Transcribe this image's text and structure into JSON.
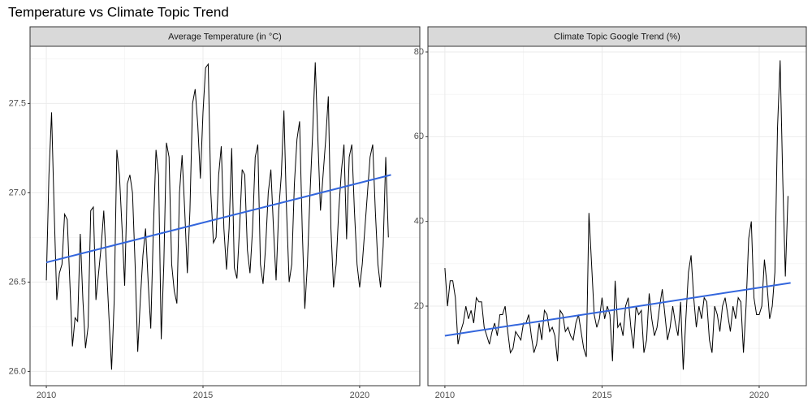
{
  "title": "Temperature vs Climate Topic Trend",
  "chart_data": [
    {
      "type": "line",
      "title": "Average Temperature (in °C)",
      "x": [
        2010,
        2010.083,
        2010.167,
        2010.25,
        2010.333,
        2010.417,
        2010.5,
        2010.583,
        2010.667,
        2010.75,
        2010.833,
        2010.917,
        2011,
        2011.083,
        2011.167,
        2011.25,
        2011.333,
        2011.417,
        2011.5,
        2011.583,
        2011.667,
        2011.75,
        2011.833,
        2011.917,
        2012,
        2012.083,
        2012.167,
        2012.25,
        2012.333,
        2012.417,
        2012.5,
        2012.583,
        2012.667,
        2012.75,
        2012.833,
        2012.917,
        2013,
        2013.083,
        2013.167,
        2013.25,
        2013.333,
        2013.417,
        2013.5,
        2013.583,
        2013.667,
        2013.75,
        2013.833,
        2013.917,
        2014,
        2014.083,
        2014.167,
        2014.25,
        2014.333,
        2014.417,
        2014.5,
        2014.583,
        2014.667,
        2014.75,
        2014.833,
        2014.917,
        2015,
        2015.083,
        2015.167,
        2015.25,
        2015.333,
        2015.417,
        2015.5,
        2015.583,
        2015.667,
        2015.75,
        2015.833,
        2015.917,
        2016,
        2016.083,
        2016.167,
        2016.25,
        2016.333,
        2016.417,
        2016.5,
        2016.583,
        2016.667,
        2016.75,
        2016.833,
        2016.917,
        2017,
        2017.083,
        2017.167,
        2017.25,
        2017.333,
        2017.417,
        2017.5,
        2017.583,
        2017.667,
        2017.75,
        2017.833,
        2017.917,
        2018,
        2018.083,
        2018.167,
        2018.25,
        2018.333,
        2018.417,
        2018.5,
        2018.583,
        2018.667,
        2018.75,
        2018.833,
        2018.917,
        2019,
        2019.083,
        2019.167,
        2019.25,
        2019.333,
        2019.417,
        2019.5,
        2019.583,
        2019.667,
        2019.75,
        2019.833,
        2019.917,
        2020,
        2020.083,
        2020.167,
        2020.25,
        2020.333,
        2020.417,
        2020.5,
        2020.583,
        2020.667,
        2020.75,
        2020.833,
        2020.917
      ],
      "values": [
        26.51,
        27.1,
        27.45,
        26.9,
        26.4,
        26.55,
        26.6,
        26.88,
        26.85,
        26.5,
        26.14,
        26.3,
        26.28,
        26.77,
        26.4,
        26.13,
        26.25,
        26.9,
        26.92,
        26.4,
        26.55,
        26.7,
        26.9,
        26.6,
        26.3,
        26.01,
        26.4,
        27.24,
        27.1,
        26.8,
        26.48,
        27.05,
        27.1,
        27.0,
        26.6,
        26.11,
        26.4,
        26.65,
        26.8,
        26.5,
        26.24,
        26.8,
        27.24,
        27.1,
        26.18,
        26.6,
        27.28,
        27.2,
        26.6,
        26.45,
        26.38,
        27.0,
        27.21,
        26.9,
        26.55,
        26.9,
        27.5,
        27.58,
        27.38,
        27.08,
        27.45,
        27.7,
        27.72,
        27.0,
        26.72,
        26.75,
        27.1,
        27.26,
        26.8,
        26.57,
        26.8,
        27.25,
        26.58,
        26.52,
        26.8,
        27.13,
        27.1,
        26.68,
        26.55,
        26.8,
        27.2,
        27.27,
        26.6,
        26.49,
        26.7,
        27.0,
        27.13,
        26.8,
        26.51,
        26.9,
        27.1,
        27.46,
        26.9,
        26.5,
        26.6,
        27.05,
        27.3,
        27.4,
        26.8,
        26.35,
        26.6,
        27.0,
        27.33,
        27.73,
        27.3,
        26.9,
        27.1,
        27.3,
        27.54,
        26.8,
        26.47,
        26.6,
        26.9,
        27.12,
        27.27,
        26.74,
        27.2,
        27.27,
        26.9,
        26.6,
        26.47,
        26.6,
        26.8,
        27.0,
        27.2,
        27.27,
        26.9,
        26.6,
        26.47,
        26.7,
        27.2,
        26.75
      ],
      "color": "#000000",
      "trend": {
        "x": [
          2010,
          2021
        ],
        "values": [
          26.61,
          27.1
        ],
        "color": "#3366dd"
      },
      "xlim": [
        2009.48,
        2021.92
      ],
      "ylim": [
        25.92,
        27.82
      ],
      "xticks": [
        2010,
        2015,
        2020
      ],
      "yticks": [
        {
          "value": 26,
          "label": "26.0"
        },
        26.5,
        {
          "value": 27,
          "label": "27.0"
        },
        27.5
      ],
      "grid": true
    },
    {
      "type": "line",
      "title": "Climate Topic Google Trend (%)",
      "x": [
        2010,
        2010.083,
        2010.167,
        2010.25,
        2010.333,
        2010.417,
        2010.5,
        2010.583,
        2010.667,
        2010.75,
        2010.833,
        2010.917,
        2011,
        2011.083,
        2011.167,
        2011.25,
        2011.333,
        2011.417,
        2011.5,
        2011.583,
        2011.667,
        2011.75,
        2011.833,
        2011.917,
        2012,
        2012.083,
        2012.167,
        2012.25,
        2012.333,
        2012.417,
        2012.5,
        2012.583,
        2012.667,
        2012.75,
        2012.833,
        2012.917,
        2013,
        2013.083,
        2013.167,
        2013.25,
        2013.333,
        2013.417,
        2013.5,
        2013.583,
        2013.667,
        2013.75,
        2013.833,
        2013.917,
        2014,
        2014.083,
        2014.167,
        2014.25,
        2014.333,
        2014.417,
        2014.5,
        2014.583,
        2014.667,
        2014.75,
        2014.833,
        2014.917,
        2015,
        2015.083,
        2015.167,
        2015.25,
        2015.333,
        2015.417,
        2015.5,
        2015.583,
        2015.667,
        2015.75,
        2015.833,
        2015.917,
        2016,
        2016.083,
        2016.167,
        2016.25,
        2016.333,
        2016.417,
        2016.5,
        2016.583,
        2016.667,
        2016.75,
        2016.833,
        2016.917,
        2017,
        2017.083,
        2017.167,
        2017.25,
        2017.333,
        2017.417,
        2017.5,
        2017.583,
        2017.667,
        2017.75,
        2017.833,
        2017.917,
        2018,
        2018.083,
        2018.167,
        2018.25,
        2018.333,
        2018.417,
        2018.5,
        2018.583,
        2018.667,
        2018.75,
        2018.833,
        2018.917,
        2019,
        2019.083,
        2019.167,
        2019.25,
        2019.333,
        2019.417,
        2019.5,
        2019.583,
        2019.667,
        2019.75,
        2019.833,
        2019.917,
        2020,
        2020.083,
        2020.167,
        2020.25,
        2020.333,
        2020.417,
        2020.5,
        2020.583,
        2020.667,
        2020.75,
        2020.833,
        2020.917
      ],
      "values": [
        29,
        20,
        26,
        26,
        22,
        11,
        14,
        16,
        20,
        17,
        19,
        16,
        22,
        21,
        21,
        15,
        13,
        11,
        14,
        16,
        13,
        18,
        18,
        20,
        14,
        9,
        10,
        14,
        13,
        12,
        16,
        16,
        18,
        13,
        9,
        11,
        16,
        12,
        19,
        18,
        14,
        15,
        13,
        7,
        19,
        18,
        14,
        15,
        13,
        12,
        16,
        18,
        14,
        10,
        8,
        42,
        30,
        18,
        15,
        17,
        22,
        17,
        20,
        18,
        7,
        26,
        15,
        16,
        13,
        20,
        22,
        15,
        10,
        20,
        18,
        19,
        9,
        12,
        23,
        17,
        13,
        15,
        20,
        24,
        18,
        12,
        15,
        20,
        16,
        13,
        21,
        5,
        17,
        28,
        32,
        22,
        15,
        20,
        17,
        22,
        21,
        12,
        9,
        20,
        18,
        14,
        20,
        22,
        18,
        14,
        20,
        17,
        22,
        21,
        9,
        20,
        36,
        40,
        22,
        18,
        18,
        20,
        31,
        25,
        17,
        20,
        28,
        62,
        78,
        50,
        27,
        46
      ],
      "color": "#000000",
      "trend": {
        "x": [
          2010,
          2021
        ],
        "values": [
          13,
          25.5
        ],
        "color": "#3366dd"
      },
      "xlim": [
        2009.46,
        2021.5
      ],
      "ylim": [
        1.22,
        81.34
      ],
      "xticks": [
        2010,
        2015,
        2020
      ],
      "yticks": [
        20,
        40,
        60,
        80
      ],
      "grid": true
    }
  ]
}
